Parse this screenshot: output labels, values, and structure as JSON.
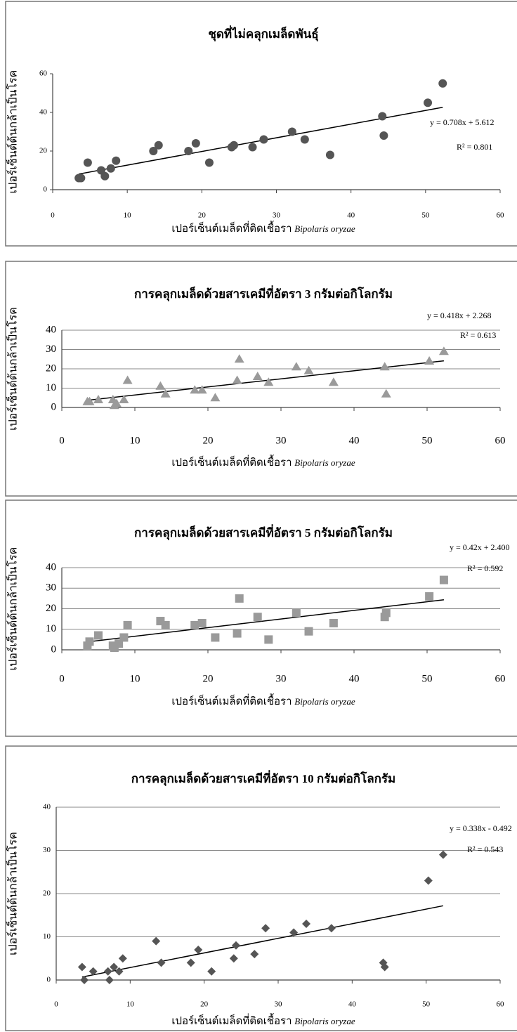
{
  "chart_data": [
    {
      "type": "scatter",
      "title": "ชุดที่ไม่คลุกเมล็ดพันธุ์",
      "ylabel": "เปอร์เซ็นต์ต้นกล้าเป็นโรค",
      "xlabel": "เปอร์เซ็นต์เมล็ดที่ติดเชื้อรา",
      "xlabel_species": "Bipolaris oryzae",
      "x": [
        3.5,
        3.8,
        4.7,
        6.5,
        7.0,
        7.8,
        8.5,
        13.5,
        14.2,
        18.2,
        19.2,
        21.0,
        24.0,
        24.3,
        26.8,
        28.3,
        32.1,
        33.8,
        37.2,
        44.2,
        44.4,
        50.3,
        52.3
      ],
      "y": [
        6,
        6,
        14,
        10,
        7,
        11,
        15,
        20,
        23,
        20,
        24,
        14,
        22,
        23,
        22,
        26,
        30,
        26,
        18,
        38,
        28,
        45,
        55
      ],
      "color": "#555555",
      "marker": "circle",
      "grid": false,
      "xlim": [
        0,
        60
      ],
      "xticks": [
        0,
        10,
        20,
        30,
        40,
        50,
        60
      ],
      "ylim": [
        0,
        60
      ],
      "yticks": [
        0,
        20,
        40,
        60
      ],
      "trendline": {
        "slope": 0.708,
        "intercept": 5.612,
        "equation": "y = 0.708x + 5.612",
        "r2": "R² = 0.801"
      }
    },
    {
      "type": "scatter",
      "title": "การคลุกเมล็ดด้วยสารเคมีที่อัตรา 3 กรัมต่อกิโลกรัม",
      "ylabel": "เปอร์เซ็นต์ต้นกล้าเป็นโรค",
      "xlabel": "เปอร์เซ็นต์เมล็ดที่ติดเชื้อรา",
      "xlabel_species": "Bipolaris oryzae",
      "x": [
        3.5,
        3.8,
        5.0,
        7.0,
        7.2,
        7.5,
        8.5,
        9.0,
        13.5,
        14.2,
        18.2,
        19.2,
        21.0,
        24.0,
        24.3,
        26.8,
        28.3,
        32.1,
        33.8,
        37.2,
        44.2,
        44.4,
        50.3,
        52.3
      ],
      "y": [
        3,
        3,
        4,
        4,
        1,
        2,
        4,
        14,
        11,
        7,
        9,
        9,
        5,
        14,
        25,
        16,
        13,
        21,
        19,
        13,
        21,
        7,
        24,
        29
      ],
      "color": "#9a9a9a",
      "marker": "triangle",
      "grid": true,
      "xlim": [
        0,
        60
      ],
      "xticks": [
        0,
        10,
        20,
        30,
        40,
        50,
        60
      ],
      "ylim": [
        0,
        40
      ],
      "yticks": [
        0,
        10,
        20,
        30,
        40
      ],
      "trendline": {
        "slope": 0.418,
        "intercept": 2.268,
        "equation": "y = 0.418x + 2.268",
        "r2": "R² = 0.613"
      }
    },
    {
      "type": "scatter",
      "title": "การคลุกเมล็ดด้วยสารเคมีที่อัตรา 5 กรัมต่อกิโลกรัม",
      "ylabel": "เปอร์เซ็นต์ต้นกล้าเป็นโรค",
      "xlabel": "เปอร์เซ็นต์เมล็ดที่ติดเชื้อรา",
      "xlabel_species": "Bipolaris oryzae",
      "x": [
        3.5,
        3.8,
        5.0,
        7.0,
        7.2,
        7.8,
        8.5,
        9.0,
        13.5,
        14.2,
        18.2,
        19.2,
        21.0,
        24.0,
        24.3,
        26.8,
        28.3,
        32.1,
        33.8,
        37.2,
        44.2,
        44.4,
        50.3,
        52.3
      ],
      "y": [
        2,
        4,
        7,
        2,
        1,
        3,
        6,
        12,
        14,
        12,
        12,
        13,
        6,
        8,
        25,
        16,
        5,
        18,
        9,
        13,
        16,
        18,
        26,
        34
      ],
      "color": "#9a9a9a",
      "marker": "square",
      "grid": true,
      "xlim": [
        0,
        60
      ],
      "xticks": [
        0,
        10,
        20,
        30,
        40,
        50,
        60
      ],
      "ylim": [
        0,
        40
      ],
      "yticks": [
        0,
        10,
        20,
        30,
        40
      ],
      "trendline": {
        "slope": 0.42,
        "intercept": 2.4,
        "equation": "y = 0.42x + 2.400",
        "r2": "R² = 0.592"
      }
    },
    {
      "type": "scatter",
      "title": "การคลุกเมล็ดด้วยสารเคมีที่อัตรา 10 กรัมต่อกิโลกรัม",
      "ylabel": "เปอร์เซ็นต์ต้นกล้าเป็นโรค",
      "xlabel": "เปอร์เซ็นต์เมล็ดที่ติดเชื้อรา",
      "xlabel_species": "Bipolaris oryzae",
      "x": [
        3.5,
        3.8,
        5.0,
        7.0,
        7.2,
        7.8,
        8.5,
        9.0,
        13.5,
        14.2,
        18.2,
        19.2,
        21.0,
        24.0,
        24.3,
        26.8,
        28.3,
        32.1,
        33.8,
        37.2,
        44.2,
        44.4,
        50.3,
        52.3
      ],
      "y": [
        3,
        0,
        2,
        2,
        0,
        3,
        2,
        5,
        9,
        4,
        4,
        7,
        2,
        5,
        8,
        6,
        12,
        11,
        13,
        12,
        4,
        3,
        23,
        29
      ],
      "color": "#555555",
      "marker": "diamond",
      "grid": true,
      "xlim": [
        0,
        60
      ],
      "xticks": [
        0,
        10,
        20,
        30,
        40,
        50,
        60
      ],
      "ylim": [
        0,
        40
      ],
      "yticks": [
        0,
        10,
        20,
        30,
        40
      ],
      "trendline": {
        "slope": 0.338,
        "intercept": -0.492,
        "equation": "y = 0.338x - 0.492",
        "r2": "R² = 0.543"
      }
    }
  ]
}
